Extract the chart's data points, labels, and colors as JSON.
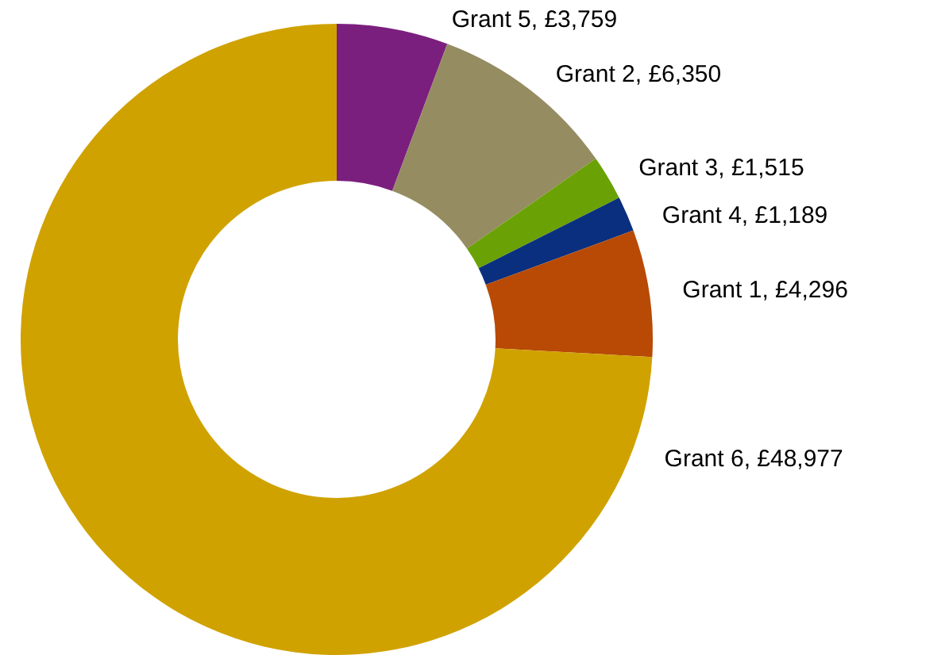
{
  "chart_data": {
    "type": "donut",
    "categories": [
      "Grant 5",
      "Grant 2",
      "Grant 3",
      "Grant 4",
      "Grant 1",
      "Grant 6"
    ],
    "values": [
      3759,
      6350,
      1515,
      1189,
      4296,
      48977
    ],
    "value_labels": [
      "£3,759",
      "£6,350",
      "£1,515",
      "£1,189",
      "£4,296",
      "£48,977"
    ],
    "colors": [
      "#7b1f7e",
      "#968c62",
      "#6aa205",
      "#0a2f7e",
      "#b84a05",
      "#d0a200"
    ]
  }
}
